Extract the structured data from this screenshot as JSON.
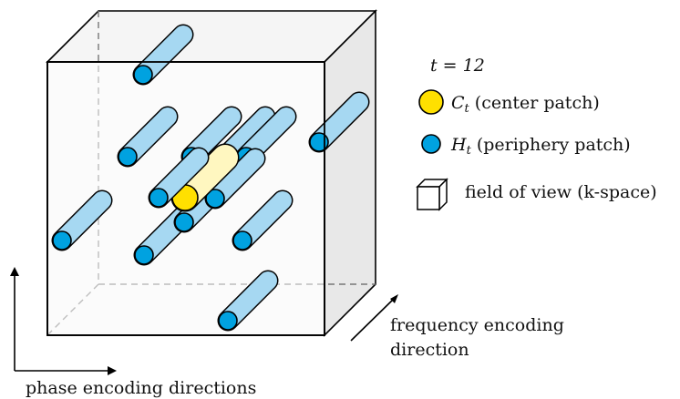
{
  "legend": {
    "time_label": "t = 12",
    "center_symbol": "C",
    "center_subscript": "t",
    "center_text": "(center patch)",
    "periphery_symbol": "H",
    "periphery_subscript": "t",
    "periphery_text": "(periphery patch)",
    "fov_text": "field of view (k-space)"
  },
  "axes": {
    "frequency_line1": "frequency encoding",
    "frequency_line2": "direction",
    "phase_label": "phase encoding directions"
  },
  "colors": {
    "center_fill": "#ffe000",
    "center_tube": "#fff7c0",
    "periphery_fill": "#00a2e0",
    "periphery_tube": "#a6d8f2",
    "outline": "#000000",
    "box_face": "#f2f2f2",
    "box_side": "#e6e6e6"
  }
}
